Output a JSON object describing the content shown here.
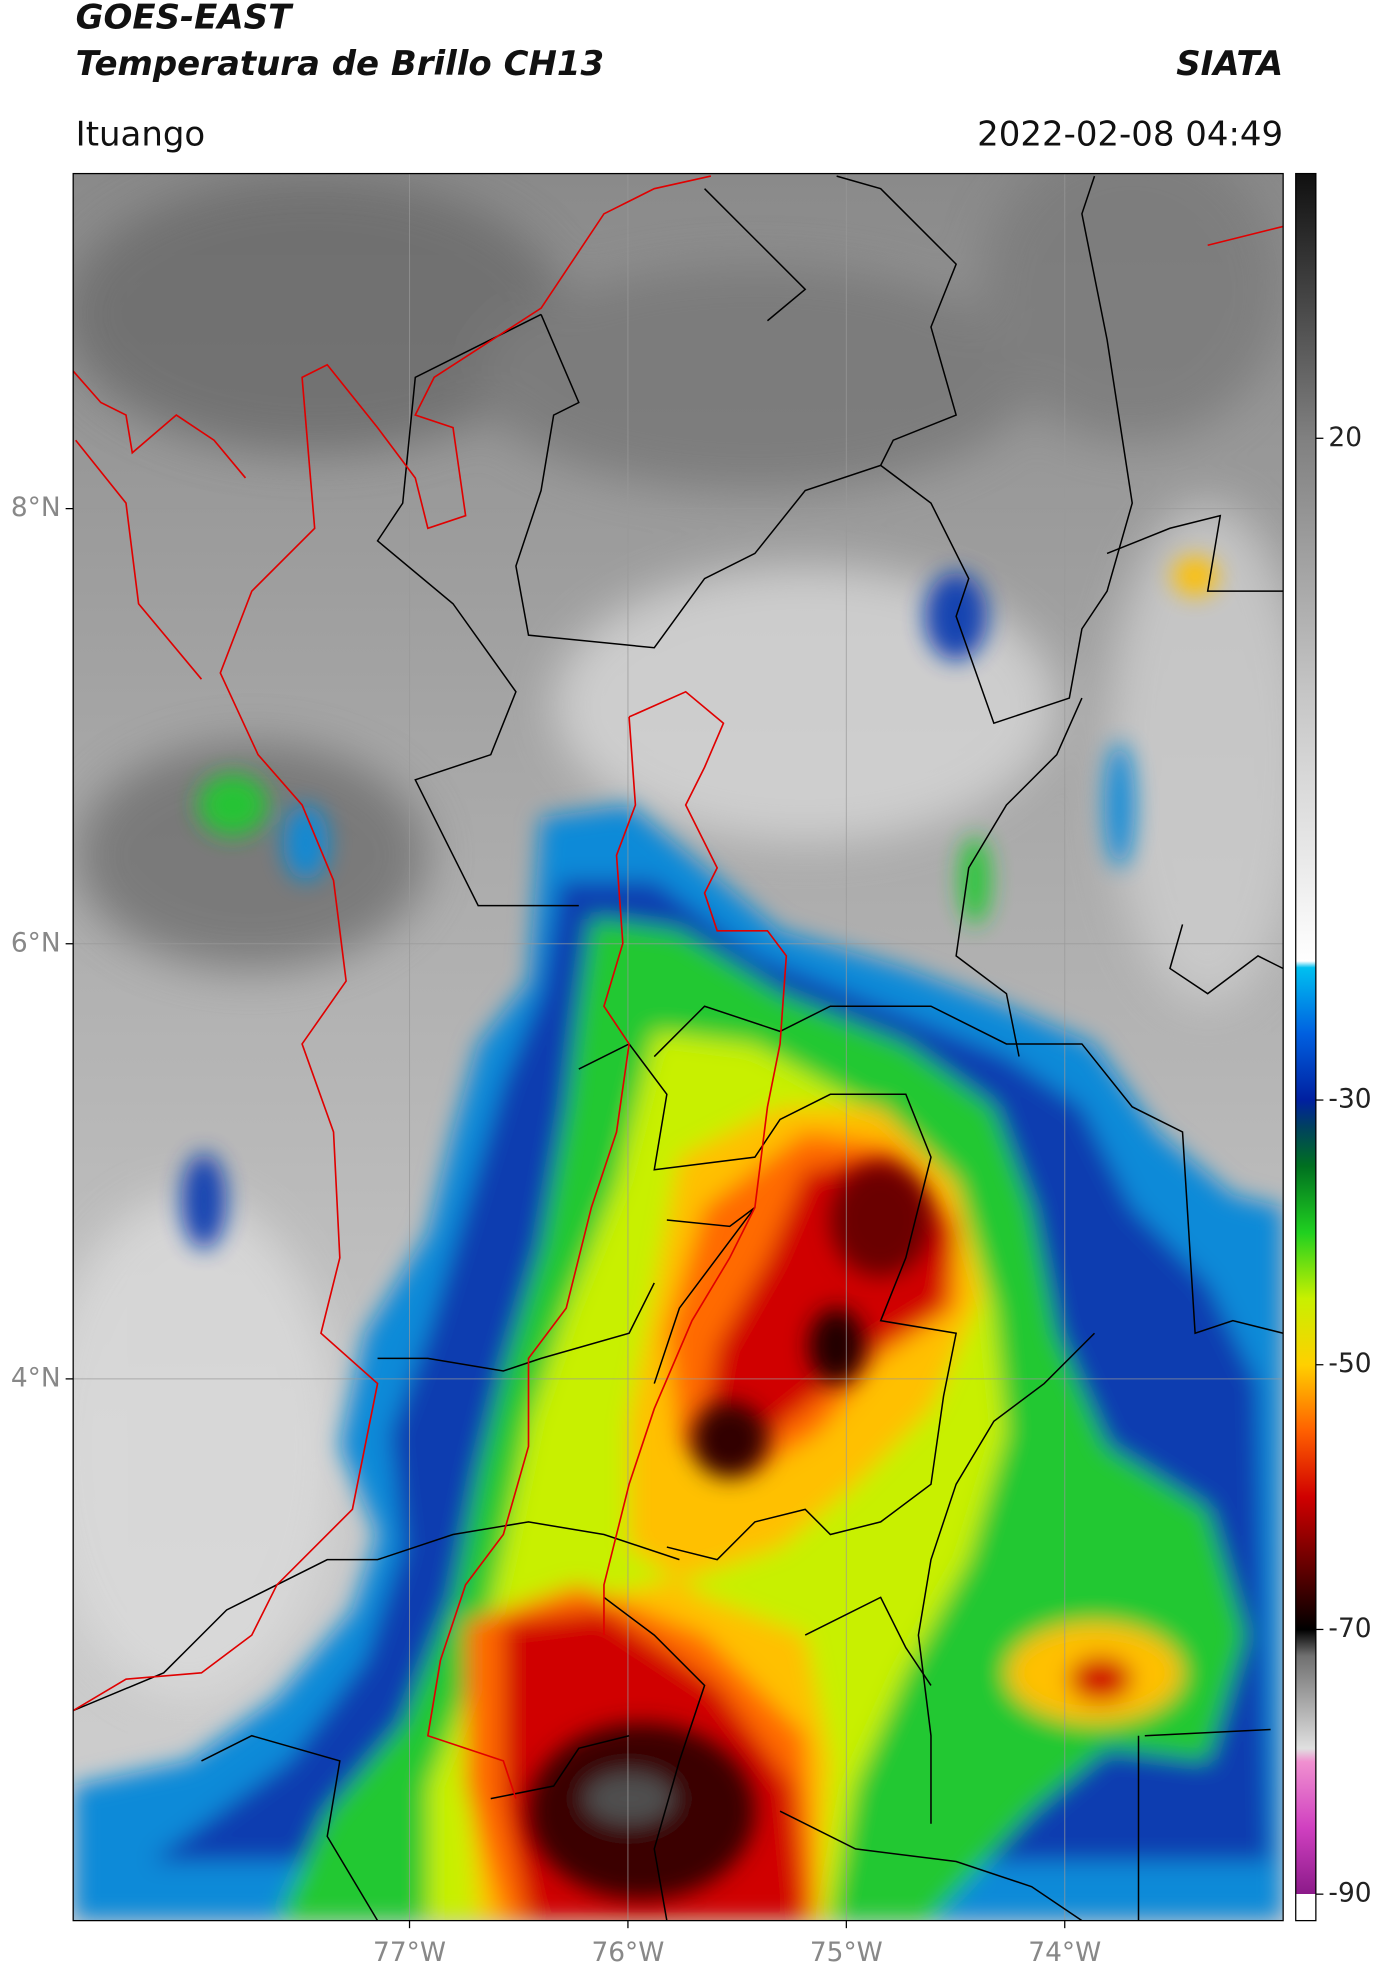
{
  "chart_data": {
    "type": "map",
    "title": "GOES-EAST",
    "subtitle": "Temperatura de Brillo CH13",
    "source": "SIATA",
    "location": "Ituango",
    "datetime": "2022-02-08 04:49",
    "xlim": [
      -78.54,
      -73.0
    ],
    "ylim": [
      1.51,
      9.54
    ],
    "xticks": [
      {
        "value": -77,
        "label": "77°W"
      },
      {
        "value": -76,
        "label": "76°W"
      },
      {
        "value": -75,
        "label": "75°W"
      },
      {
        "value": -74,
        "label": "74°W"
      }
    ],
    "yticks": [
      {
        "value": 8,
        "label": "8°N"
      },
      {
        "value": 6,
        "label": "6°N"
      },
      {
        "value": 4,
        "label": "4°N"
      }
    ],
    "grid": true,
    "colorbar": {
      "lim": [
        -92,
        40
      ],
      "ticks": [
        20,
        -30,
        -50,
        -70,
        -90
      ],
      "colormap": [
        {
          "value": -92,
          "color": "#ffffff"
        },
        {
          "value": -90,
          "color": "#ffffff"
        },
        {
          "value": -90,
          "color": "#8b1a89"
        },
        {
          "value": -85,
          "color": "#d040c0"
        },
        {
          "value": -80,
          "color": "#f090d0"
        },
        {
          "value": -79,
          "color": "#e0e0e0"
        },
        {
          "value": -72,
          "color": "#707070"
        },
        {
          "value": -70,
          "color": "#000000"
        },
        {
          "value": -65,
          "color": "#6a0000"
        },
        {
          "value": -60,
          "color": "#d00000"
        },
        {
          "value": -55,
          "color": "#ff6000"
        },
        {
          "value": -50,
          "color": "#ffd000"
        },
        {
          "value": -45,
          "color": "#c8f000"
        },
        {
          "value": -40,
          "color": "#20d020"
        },
        {
          "value": -35,
          "color": "#007020"
        },
        {
          "value": -32,
          "color": "#004060"
        },
        {
          "value": -30,
          "color": "#0020a0"
        },
        {
          "value": -25,
          "color": "#0060e0"
        },
        {
          "value": -20,
          "color": "#00c0f0"
        },
        {
          "value": -19.5,
          "color": "#ffffff"
        },
        {
          "value": 0,
          "color": "#c8c8c8"
        },
        {
          "value": 20,
          "color": "#808080"
        },
        {
          "value": 40,
          "color": "#101010"
        }
      ]
    }
  }
}
